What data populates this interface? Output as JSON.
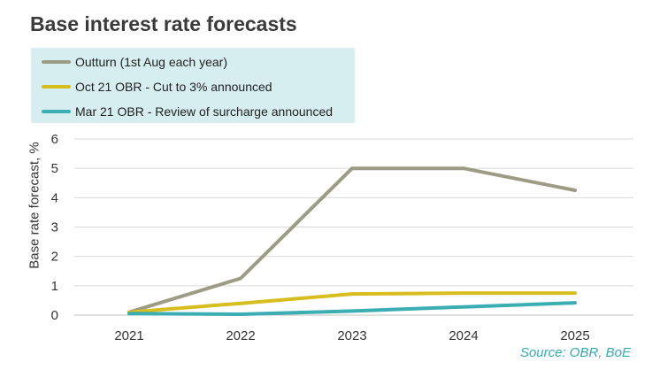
{
  "chart_data": {
    "type": "line",
    "title": "Base interest rate forecasts",
    "ylabel": "Base rate forecast, %",
    "xlabel": "",
    "x": [
      "2021",
      "2022",
      "2023",
      "2024",
      "2025"
    ],
    "ylim": [
      0,
      6
    ],
    "yticks": [
      "0",
      "1",
      "2",
      "3",
      "4",
      "5",
      "6"
    ],
    "grid": true,
    "legend_position": "top-left",
    "series": [
      {
        "name": "Outturn (1st Aug each year)",
        "color": "#9c9c84",
        "values": [
          0.1,
          1.25,
          5.0,
          5.0,
          4.25
        ]
      },
      {
        "name": "Oct 21 OBR - Cut to 3% announced",
        "color": "#d8bd1e",
        "values": [
          0.1,
          0.4,
          0.72,
          0.75,
          0.75
        ]
      },
      {
        "name": "Mar 21 OBR - Review of surcharge announced",
        "color": "#3aaeb3",
        "values": [
          0.05,
          0.03,
          0.14,
          0.28,
          0.42
        ]
      }
    ]
  },
  "source": "Source: OBR, BoE"
}
